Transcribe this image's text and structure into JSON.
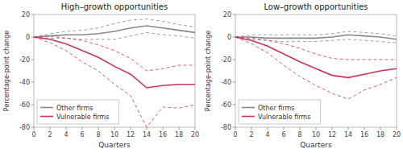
{
  "chart_data": [
    {
      "type": "line",
      "title": "High–growth opportunities",
      "x_label": "Quarters",
      "y_label": "Percentage-point change",
      "x": [
        0,
        2,
        4,
        6,
        8,
        10,
        12,
        14,
        16,
        18,
        20
      ],
      "xlim": [
        0,
        20
      ],
      "xticks": [
        0,
        2,
        4,
        6,
        8,
        10,
        12,
        14,
        16,
        18,
        20
      ],
      "ylim": [
        -80,
        20
      ],
      "yticks": [
        -80,
        -60,
        -40,
        -20,
        0,
        20
      ],
      "legend": "lower left",
      "grid": false,
      "series": [
        {
          "name": "Other firms",
          "color": "#888888",
          "values": [
            0,
            1,
            2,
            2,
            3,
            5,
            8,
            10,
            8,
            6,
            4
          ],
          "upper": [
            0,
            3,
            5,
            6,
            8,
            12,
            15,
            16,
            14,
            11,
            9
          ],
          "lower": [
            0,
            -1,
            -1,
            -2,
            -2,
            -2,
            1,
            4,
            2,
            1,
            -1
          ]
        },
        {
          "name": "Vulnerable firms",
          "color": "#cc3355",
          "values": [
            0,
            -2,
            -6,
            -12,
            -18,
            -26,
            -33,
            -45,
            -43,
            -42,
            -42
          ],
          "upper": [
            0,
            1,
            -1,
            -3,
            -7,
            -12,
            -19,
            -30,
            -28,
            -25,
            -25
          ],
          "lower": [
            0,
            -5,
            -12,
            -22,
            -30,
            -42,
            -52,
            -80,
            -62,
            -63,
            -60
          ]
        }
      ]
    },
    {
      "type": "line",
      "title": "Low–growth opportunities",
      "x_label": "Quarters",
      "y_label": "Percentage-point change",
      "x": [
        0,
        2,
        4,
        6,
        8,
        10,
        12,
        14,
        16,
        18,
        20
      ],
      "xlim": [
        0,
        20
      ],
      "xticks": [
        0,
        2,
        4,
        6,
        8,
        10,
        12,
        14,
        16,
        18,
        20
      ],
      "ylim": [
        -80,
        20
      ],
      "yticks": [
        -80,
        -60,
        -40,
        -20,
        0,
        20
      ],
      "legend": "lower left",
      "grid": false,
      "series": [
        {
          "name": "Other firms",
          "color": "#888888",
          "values": [
            0,
            0,
            -1,
            -1,
            -1,
            -1,
            0,
            2,
            1,
            0,
            -2
          ],
          "upper": [
            0,
            2,
            2,
            2,
            2,
            2,
            3,
            5,
            4,
            3,
            1
          ],
          "lower": [
            0,
            -2,
            -3,
            -4,
            -4,
            -4,
            -3,
            -2,
            -3,
            -4,
            -5
          ]
        },
        {
          "name": "Vulnerable firms",
          "color": "#cc3355",
          "values": [
            0,
            -3,
            -8,
            -15,
            -22,
            -28,
            -34,
            -36,
            -33,
            -30,
            -28
          ],
          "upper": [
            0,
            -1,
            -3,
            -6,
            -10,
            -15,
            -19,
            -20,
            -20,
            -20,
            -20
          ],
          "lower": [
            0,
            -6,
            -14,
            -25,
            -35,
            -43,
            -50,
            -55,
            -47,
            -42,
            -36
          ]
        }
      ]
    }
  ]
}
